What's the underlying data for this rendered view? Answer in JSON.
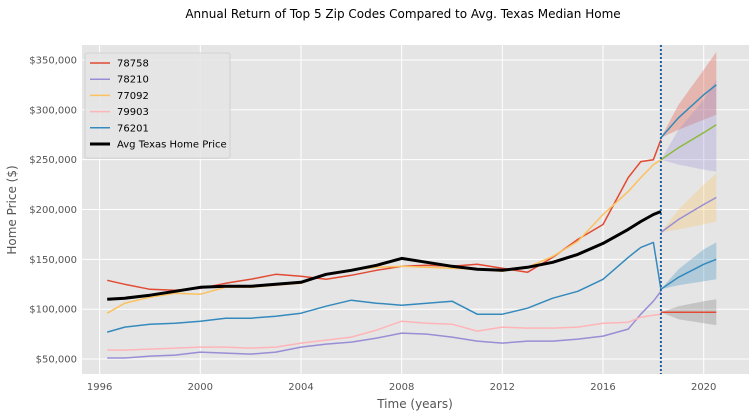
{
  "chart_data": {
    "type": "line",
    "title": "Annual Return of Top 5 Zip Codes Compared to Avg. Texas Median Home",
    "xlabel": "Time (years)",
    "ylabel": "Home Price ($)",
    "xlim": [
      1995.3,
      2021.8
    ],
    "ylim": [
      35000,
      365000
    ],
    "x_ticks": [
      1996,
      2000,
      2004,
      2008,
      2012,
      2016,
      2020
    ],
    "x_tick_labels": [
      "1996",
      "2000",
      "2004",
      "2008",
      "2012",
      "2016",
      "2020"
    ],
    "y_ticks": [
      50000,
      100000,
      150000,
      200000,
      250000,
      300000,
      350000
    ],
    "y_tick_labels": [
      "$50,000",
      "$100,000",
      "$150,000",
      "$200,000",
      "$250,000",
      "$300,000",
      "$350,000"
    ],
    "grid": true,
    "legend_placement": "top-left",
    "forecast_marker_x": 2018.3,
    "series": [
      {
        "name": "78758",
        "color": "#e24a33",
        "points": [
          [
            1996.3,
            129000
          ],
          [
            1997,
            125000
          ],
          [
            1998,
            120000
          ],
          [
            1999,
            119000
          ],
          [
            2000,
            121000
          ],
          [
            2001,
            126000
          ],
          [
            2002,
            130000
          ],
          [
            2003,
            135000
          ],
          [
            2004,
            133000
          ],
          [
            2005,
            130000
          ],
          [
            2006,
            134000
          ],
          [
            2007,
            139000
          ],
          [
            2008,
            143000
          ],
          [
            2009,
            144000
          ],
          [
            2010,
            143000
          ],
          [
            2011,
            145000
          ],
          [
            2012,
            141000
          ],
          [
            2013,
            137000
          ],
          [
            2014,
            152000
          ],
          [
            2015,
            170000
          ],
          [
            2016,
            185000
          ],
          [
            2017,
            232000
          ],
          [
            2017.5,
            248000
          ],
          [
            2018,
            250000
          ],
          [
            2018.3,
            270000
          ]
        ]
      },
      {
        "name": "78210",
        "color": "#988ed5",
        "points": [
          [
            1996.3,
            51000
          ],
          [
            1997,
            51000
          ],
          [
            1998,
            53000
          ],
          [
            1999,
            54000
          ],
          [
            2000,
            57000
          ],
          [
            2001,
            56000
          ],
          [
            2002,
            55000
          ],
          [
            2003,
            57000
          ],
          [
            2004,
            62000
          ],
          [
            2005,
            65000
          ],
          [
            2006,
            67000
          ],
          [
            2007,
            71000
          ],
          [
            2008,
            76000
          ],
          [
            2009,
            75000
          ],
          [
            2010,
            72000
          ],
          [
            2011,
            68000
          ],
          [
            2012,
            66000
          ],
          [
            2013,
            68000
          ],
          [
            2014,
            68000
          ],
          [
            2015,
            70000
          ],
          [
            2016,
            73000
          ],
          [
            2017,
            80000
          ],
          [
            2017.5,
            95000
          ],
          [
            2018,
            108000
          ],
          [
            2018.3,
            118000
          ]
        ]
      },
      {
        "name": "77092",
        "color": "#fbc15e",
        "points": [
          [
            1996.3,
            96000
          ],
          [
            1997,
            106000
          ],
          [
            1998,
            112000
          ],
          [
            1999,
            116000
          ],
          [
            2000,
            115000
          ],
          [
            2001,
            122000
          ],
          [
            2002,
            122000
          ],
          [
            2003,
            124000
          ],
          [
            2004,
            126000
          ],
          [
            2005,
            135000
          ],
          [
            2006,
            139000
          ],
          [
            2007,
            142000
          ],
          [
            2008,
            143000
          ],
          [
            2009,
            142000
          ],
          [
            2010,
            141000
          ],
          [
            2011,
            140000
          ],
          [
            2012,
            138000
          ],
          [
            2013,
            142000
          ],
          [
            2014,
            153000
          ],
          [
            2015,
            168000
          ],
          [
            2016,
            195000
          ],
          [
            2017,
            218000
          ],
          [
            2017.5,
            232000
          ],
          [
            2018,
            245000
          ],
          [
            2018.3,
            250000
          ]
        ]
      },
      {
        "name": "79903",
        "color": "#ffb5b8",
        "points": [
          [
            1996.3,
            59000
          ],
          [
            1997,
            59000
          ],
          [
            1998,
            60000
          ],
          [
            1999,
            61000
          ],
          [
            2000,
            62000
          ],
          [
            2001,
            62000
          ],
          [
            2002,
            61000
          ],
          [
            2003,
            62000
          ],
          [
            2004,
            66000
          ],
          [
            2005,
            69000
          ],
          [
            2006,
            72000
          ],
          [
            2007,
            79000
          ],
          [
            2008,
            88000
          ],
          [
            2009,
            86000
          ],
          [
            2010,
            85000
          ],
          [
            2011,
            78000
          ],
          [
            2012,
            82000
          ],
          [
            2013,
            81000
          ],
          [
            2014,
            81000
          ],
          [
            2015,
            82000
          ],
          [
            2016,
            86000
          ],
          [
            2017,
            87000
          ],
          [
            2017.5,
            92000
          ],
          [
            2018,
            94000
          ],
          [
            2018.3,
            95000
          ]
        ]
      },
      {
        "name": "76201",
        "color": "#348abd",
        "points": [
          [
            1996.3,
            77000
          ],
          [
            1997,
            82000
          ],
          [
            1998,
            85000
          ],
          [
            1999,
            86000
          ],
          [
            2000,
            88000
          ],
          [
            2001,
            91000
          ],
          [
            2002,
            91000
          ],
          [
            2003,
            93000
          ],
          [
            2004,
            96000
          ],
          [
            2005,
            103000
          ],
          [
            2006,
            109000
          ],
          [
            2007,
            106000
          ],
          [
            2008,
            104000
          ],
          [
            2009,
            106000
          ],
          [
            2010,
            108000
          ],
          [
            2011,
            95000
          ],
          [
            2012,
            95000
          ],
          [
            2013,
            101000
          ],
          [
            2014,
            111000
          ],
          [
            2015,
            118000
          ],
          [
            2016,
            130000
          ],
          [
            2017,
            152000
          ],
          [
            2017.5,
            162000
          ],
          [
            2018,
            167000
          ],
          [
            2018.3,
            120000
          ]
        ]
      },
      {
        "name": "Avg Texas Home Price",
        "color": "#000000",
        "width": 3,
        "points": [
          [
            1996.3,
            110000
          ],
          [
            1997,
            111000
          ],
          [
            1998,
            114000
          ],
          [
            1999,
            118000
          ],
          [
            2000,
            122000
          ],
          [
            2001,
            123000
          ],
          [
            2002,
            123000
          ],
          [
            2003,
            125000
          ],
          [
            2004,
            127000
          ],
          [
            2005,
            135000
          ],
          [
            2006,
            139000
          ],
          [
            2007,
            144000
          ],
          [
            2008,
            151000
          ],
          [
            2009,
            147000
          ],
          [
            2010,
            143000
          ],
          [
            2011,
            140000
          ],
          [
            2012,
            139000
          ],
          [
            2013,
            142000
          ],
          [
            2014,
            147000
          ],
          [
            2015,
            155000
          ],
          [
            2016,
            166000
          ],
          [
            2017,
            180000
          ],
          [
            2017.5,
            188000
          ],
          [
            2018,
            195000
          ],
          [
            2018.3,
            198000
          ]
        ]
      }
    ],
    "forecasts": [
      {
        "color": "#348abd",
        "fill": "#e24a33",
        "points": [
          [
            2018.3,
            272000
          ],
          [
            2019,
            292000
          ],
          [
            2020,
            315000
          ],
          [
            2020.5,
            325000
          ]
        ],
        "upper": [
          [
            2018.3,
            272000
          ],
          [
            2019,
            305000
          ],
          [
            2020,
            340000
          ],
          [
            2020.5,
            358000
          ]
        ],
        "lower": [
          [
            2018.3,
            272000
          ],
          [
            2019,
            280000
          ],
          [
            2020,
            290000
          ],
          [
            2020.5,
            295000
          ]
        ]
      },
      {
        "color": "#8eba42",
        "fill": "#988ed5",
        "points": [
          [
            2018.3,
            250000
          ],
          [
            2019,
            262000
          ],
          [
            2020,
            277000
          ],
          [
            2020.5,
            285000
          ]
        ],
        "upper": [
          [
            2018.3,
            250000
          ],
          [
            2019,
            280000
          ],
          [
            2020,
            310000
          ],
          [
            2020.5,
            330000
          ]
        ],
        "lower": [
          [
            2018.3,
            250000
          ],
          [
            2019,
            245000
          ],
          [
            2020,
            240000
          ],
          [
            2020.5,
            238000
          ]
        ]
      },
      {
        "color": "#988ed5",
        "fill": "#fbc15e",
        "points": [
          [
            2018.3,
            177000
          ],
          [
            2019,
            190000
          ],
          [
            2020,
            205000
          ],
          [
            2020.5,
            212000
          ]
        ],
        "upper": [
          [
            2018.3,
            177000
          ],
          [
            2019,
            200000
          ],
          [
            2020,
            225000
          ],
          [
            2020.5,
            236000
          ]
        ],
        "lower": [
          [
            2018.3,
            177000
          ],
          [
            2019,
            180000
          ],
          [
            2020,
            185000
          ],
          [
            2020.5,
            188000
          ]
        ]
      },
      {
        "color": "#348abd",
        "fill": "#348abd",
        "points": [
          [
            2018.3,
            120000
          ],
          [
            2019,
            132000
          ],
          [
            2020,
            145000
          ],
          [
            2020.5,
            150000
          ]
        ],
        "upper": [
          [
            2018.3,
            120000
          ],
          [
            2019,
            140000
          ],
          [
            2020,
            160000
          ],
          [
            2020.5,
            167000
          ]
        ],
        "lower": [
          [
            2018.3,
            120000
          ],
          [
            2019,
            124000
          ],
          [
            2020,
            128000
          ],
          [
            2020.5,
            130000
          ]
        ]
      },
      {
        "color": "#e24a33",
        "fill": "#777777",
        "points": [
          [
            2018.3,
            97000
          ],
          [
            2019,
            97000
          ],
          [
            2020,
            97000
          ],
          [
            2020.5,
            97000
          ]
        ],
        "upper": [
          [
            2018.3,
            97000
          ],
          [
            2019,
            103000
          ],
          [
            2020,
            108000
          ],
          [
            2020.5,
            110000
          ]
        ],
        "lower": [
          [
            2018.3,
            97000
          ],
          [
            2019,
            90000
          ],
          [
            2020,
            86000
          ],
          [
            2020.5,
            84000
          ]
        ]
      }
    ]
  }
}
